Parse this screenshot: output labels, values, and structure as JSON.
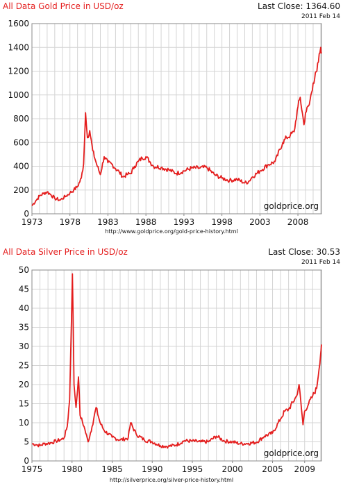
{
  "gold": {
    "title": "All Data Gold Price in USD/oz",
    "last_close": "Last Close: 1364.60",
    "date": "2011 Feb 14",
    "watermark": "goldprice.org",
    "source_url": "http://www.goldprice.org/gold-price-history.html",
    "color": "#e41d1d"
  },
  "silver": {
    "title": "All Data Silver Price in USD/oz",
    "last_close": "Last Close: 30.53",
    "date": "2011 Feb 14",
    "watermark": "goldprice.org",
    "source_url": "http://silverprice.org/silver-price-history.html",
    "color": "#e41d1d"
  },
  "chart_data": [
    {
      "type": "line",
      "title": "All Data Gold Price in USD/oz",
      "xlim": [
        1973,
        2011.1
      ],
      "ylim": [
        0,
        1600
      ],
      "x_ticks": [
        "1973",
        "1978",
        "1983",
        "1988",
        "1993",
        "1998",
        "2003",
        "2008"
      ],
      "y_ticks": [
        "0",
        "200",
        "400",
        "600",
        "800",
        "1000",
        "1200",
        "1400",
        "1600"
      ],
      "grid": true,
      "series": [
        {
          "x": [
            1973.0,
            1973.5,
            1974.0,
            1974.5,
            1975.0,
            1975.5,
            1976.0,
            1976.7,
            1977.5,
            1978.0,
            1978.5,
            1979.0,
            1979.5,
            1979.8,
            1980.05,
            1980.3,
            1980.6,
            1981.0,
            1981.5,
            1982.0,
            1982.5,
            1983.0,
            1983.5,
            1984.0,
            1984.5,
            1985.0,
            1985.5,
            1986.0,
            1986.5,
            1987.0,
            1987.5,
            1988.0,
            1988.5,
            1989.0,
            1990.0,
            1991.0,
            1992.0,
            1993.0,
            1994.0,
            1995.0,
            1996.0,
            1997.0,
            1998.0,
            1999.0,
            2000.0,
            2001.0,
            2001.5,
            2002.0,
            2003.0,
            2004.0,
            2005.0,
            2006.0,
            2006.5,
            2007.0,
            2007.5,
            2008.0,
            2008.3,
            2008.8,
            2009.0,
            2009.5,
            2010.0,
            2010.5,
            2011.0,
            2011.1
          ],
          "y": [
            68,
            110,
            150,
            170,
            185,
            160,
            130,
            115,
            150,
            175,
            200,
            230,
            300,
            420,
            850,
            640,
            700,
            530,
            420,
            330,
            480,
            430,
            420,
            380,
            350,
            310,
            330,
            340,
            400,
            440,
            470,
            480,
            440,
            400,
            390,
            370,
            340,
            360,
            385,
            385,
            390,
            330,
            300,
            280,
            290,
            260,
            270,
            310,
            360,
            410,
            440,
            600,
            640,
            660,
            690,
            900,
            980,
            750,
            850,
            920,
            1100,
            1200,
            1400,
            1360
          ]
        }
      ]
    },
    {
      "type": "line",
      "title": "All Data Silver Price in USD/oz",
      "xlim": [
        1975,
        2011.1
      ],
      "ylim": [
        0,
        50
      ],
      "x_ticks": [
        "1975",
        "1980",
        "1985",
        "1990",
        "1995",
        "2000",
        "2005",
        "2009"
      ],
      "y_ticks": [
        "0",
        "5",
        "10",
        "15",
        "20",
        "25",
        "30",
        "35",
        "40",
        "45",
        "50"
      ],
      "grid": true,
      "series": [
        {
          "x": [
            1975.0,
            1975.5,
            1976.0,
            1976.5,
            1977.0,
            1977.5,
            1978.0,
            1978.5,
            1979.0,
            1979.4,
            1979.7,
            1980.05,
            1980.25,
            1980.5,
            1980.8,
            1981.0,
            1981.5,
            1982.0,
            1982.5,
            1983.0,
            1983.5,
            1984.0,
            1985.0,
            1986.0,
            1987.0,
            1987.3,
            1988.0,
            1989.0,
            1990.0,
            1991.0,
            1992.0,
            1993.0,
            1994.0,
            1995.0,
            1996.0,
            1997.0,
            1998.0,
            1999.0,
            2000.0,
            2001.0,
            2002.0,
            2003.0,
            2004.0,
            2005.0,
            2006.0,
            2006.5,
            2007.0,
            2008.0,
            2008.3,
            2008.8,
            2009.0,
            2009.5,
            2010.0,
            2010.5,
            2011.0,
            2011.1
          ],
          "y": [
            4.5,
            4.3,
            4.0,
            4.5,
            4.6,
            4.8,
            5.2,
            5.5,
            6.0,
            9.0,
            16.0,
            49.0,
            20.0,
            14.0,
            22.0,
            12.0,
            9.0,
            5.0,
            9.0,
            14.0,
            10.0,
            8.0,
            6.2,
            5.5,
            6.0,
            10.0,
            7.0,
            5.5,
            5.0,
            4.0,
            3.8,
            4.2,
            5.3,
            5.2,
            5.0,
            5.0,
            6.5,
            5.2,
            5.0,
            4.5,
            4.6,
            4.9,
            6.5,
            7.3,
            11.0,
            13.0,
            13.5,
            17.0,
            20.0,
            9.5,
            13.0,
            15.0,
            17.0,
            19.0,
            28.0,
            30.5
          ]
        }
      ]
    }
  ]
}
